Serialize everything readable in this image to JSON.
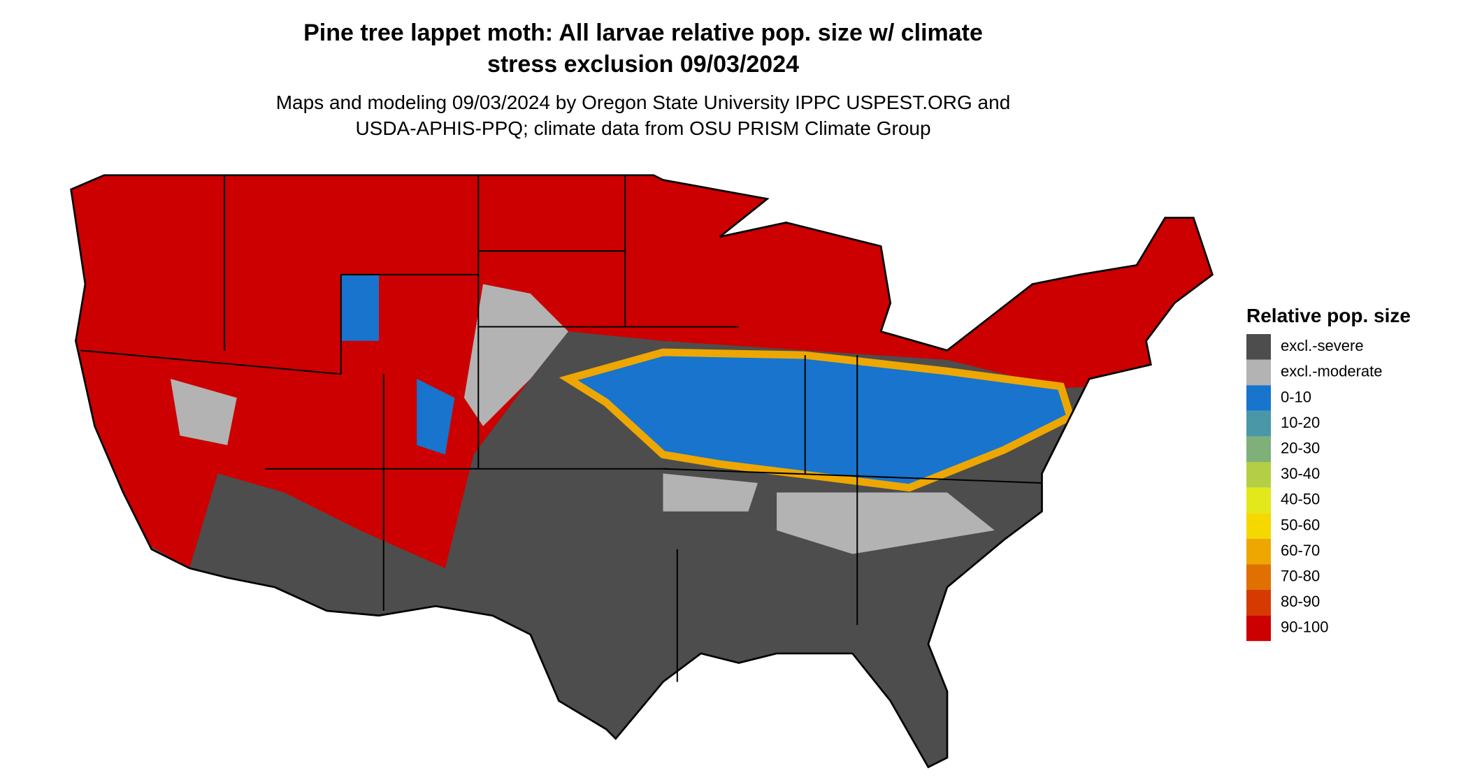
{
  "header": {
    "title_lines": [
      "Pine tree lappet moth: All larvae relative pop. size w/ climate",
      "stress exclusion 09/03/2024"
    ],
    "subtitle_lines": [
      "Maps and modeling 09/03/2024 by Oregon State University IPPC USPEST.ORG and",
      "USDA-APHIS-PPQ; climate data from OSU PRISM Climate Group"
    ]
  },
  "legend": {
    "title": "Relative pop. size",
    "items": [
      {
        "label": "excl.-severe",
        "color": "#4d4d4d"
      },
      {
        "label": "excl.-moderate",
        "color": "#b3b3b3"
      },
      {
        "label": "0-10",
        "color": "#1874cd"
      },
      {
        "label": "10-20",
        "color": "#4a97a8"
      },
      {
        "label": "20-30",
        "color": "#7fb07a"
      },
      {
        "label": "30-40",
        "color": "#b4cf45"
      },
      {
        "label": "40-50",
        "color": "#e3e81a"
      },
      {
        "label": "50-60",
        "color": "#f5d800"
      },
      {
        "label": "60-70",
        "color": "#eea700"
      },
      {
        "label": "70-80",
        "color": "#e07000"
      },
      {
        "label": "80-90",
        "color": "#d63a00"
      },
      {
        "label": "90-100",
        "color": "#cc0000"
      }
    ]
  }
}
